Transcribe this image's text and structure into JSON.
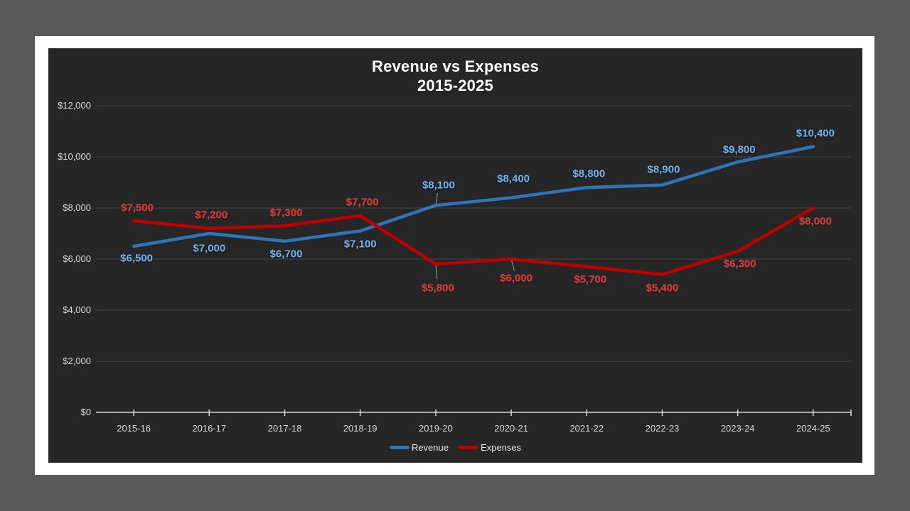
{
  "colors": {
    "desk_background": "#595959",
    "slide_background": "#ffffff",
    "chart_background": "#262626",
    "gridline": "#474747",
    "axis": "#d9d9d9",
    "leader_line": "#9e9e9e"
  },
  "chart_data": {
    "type": "line",
    "title": "Revenue vs Expenses",
    "subtitle": "2015-2025",
    "categories": [
      "2015-16",
      "2016-17",
      "2017-18",
      "2018-19",
      "2019-20",
      "2020-21",
      "2021-22",
      "2022-23",
      "2023-24",
      "2024-25"
    ],
    "series": [
      {
        "name": "Revenue",
        "line_color": "#2e74b6",
        "label_color": "#79b1e3",
        "values": [
          6500,
          7000,
          6700,
          7100,
          8100,
          8400,
          8800,
          8900,
          9800,
          10400
        ],
        "labels": [
          "$6,500",
          "$7,000",
          "$6,700",
          "$7,100",
          "$8,100",
          "$8,400",
          "$8,800",
          "$8,900",
          "$9,800",
          "$10,400"
        ],
        "label_dx": [
          4,
          0,
          2,
          0,
          4,
          3,
          3,
          2,
          2,
          3
        ],
        "label_dy": [
          17,
          21,
          18,
          19,
          -28,
          -27,
          -19,
          -22,
          -17,
          -19
        ],
        "leader": [
          false,
          false,
          false,
          false,
          true,
          false,
          false,
          false,
          false,
          false
        ]
      },
      {
        "name": "Expenses",
        "line_color": "#c00000",
        "label_color": "#dd3532",
        "values": [
          7500,
          7200,
          7300,
          7700,
          5800,
          6000,
          5700,
          5400,
          6300,
          8000
        ],
        "labels": [
          "$7,500",
          "$7,200",
          "$7,300",
          "$7,700",
          "$5,800",
          "$6,000",
          "$5,700",
          "$5,400",
          "$6,300",
          "$8,000"
        ],
        "label_dx": [
          5,
          3,
          2,
          3,
          3,
          7,
          5,
          0,
          3,
          3
        ],
        "label_dy": [
          -18,
          -19,
          -18,
          -19,
          34,
          27,
          18,
          19,
          18,
          19
        ],
        "leader": [
          false,
          false,
          false,
          false,
          true,
          true,
          false,
          false,
          false,
          false
        ]
      }
    ],
    "y_axis": {
      "labels": [
        "$12,000",
        "$10,000",
        "$8,000",
        "$6,000",
        "$4,000",
        "$2,000",
        "$0"
      ],
      "values": [
        12000,
        10000,
        8000,
        6000,
        4000,
        2000,
        0
      ],
      "min": 0,
      "max": 12000,
      "step": 2000
    },
    "legend": {
      "position": "bottom",
      "entries": [
        "Revenue",
        "Expenses"
      ]
    },
    "grid": true
  }
}
